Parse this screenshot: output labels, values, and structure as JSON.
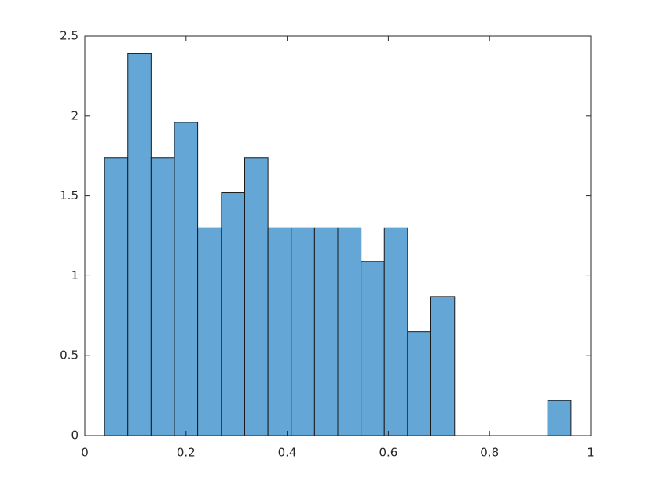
{
  "chart_data": {
    "type": "histogram",
    "bins": [
      0.039,
      0.085,
      0.131,
      0.177,
      0.223,
      0.27,
      0.316,
      0.362,
      0.408,
      0.454,
      0.5,
      0.546,
      0.592,
      0.638,
      0.684,
      0.731,
      0.777,
      0.823,
      0.869,
      0.915,
      0.961
    ],
    "values": [
      1.74,
      2.39,
      1.74,
      1.96,
      1.3,
      1.52,
      1.74,
      1.3,
      1.3,
      1.3,
      1.3,
      1.09,
      1.3,
      0.65,
      0.87,
      0,
      0,
      0,
      0,
      0.22
    ],
    "color": "#64a6d5",
    "xlim": [
      0,
      1
    ],
    "xticks": [
      0,
      0.2,
      0.4,
      0.6,
      0.8,
      1
    ],
    "ylim": [
      0,
      2.5
    ],
    "yticks": [
      0,
      0.5,
      1,
      1.5,
      2,
      2.5
    ],
    "grid": false
  }
}
